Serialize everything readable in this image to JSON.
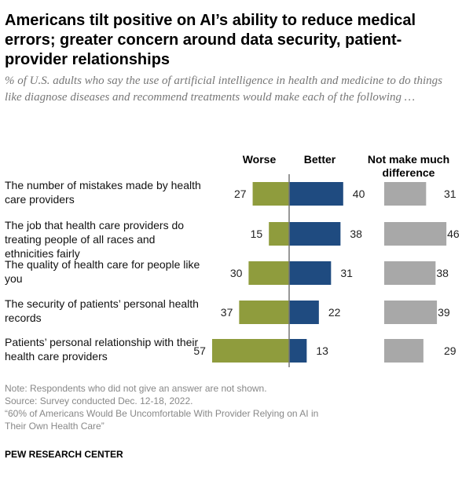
{
  "title": "Americans tilt positive on AI’s ability to reduce medical errors; greater concern around data security, patient-provider relationships",
  "subtitle": "% of U.S. adults who say the use of artificial intelligence in health and medicine to do things like diagnose diseases and recommend treatments would make each of the following …",
  "chart_data": {
    "type": "bar",
    "categories": [
      "The number of mistakes made by health care providers",
      "The job that health care providers do treating people of all races and ethnicities fairly",
      "The quality of health care for people like you",
      "The security of patients’ personal health records",
      "Patients’ personal relationship with their health care providers"
    ],
    "series": [
      {
        "name": "Worse",
        "values": [
          27,
          15,
          30,
          37,
          57
        ],
        "color": "#8f9c3d"
      },
      {
        "name": "Better",
        "values": [
          40,
          38,
          31,
          22,
          13
        ],
        "color": "#1f4b80"
      },
      {
        "name": "Not make much difference",
        "values": [
          31,
          46,
          38,
          39,
          29
        ],
        "color": "#a8a8a8"
      }
    ]
  },
  "notes": [
    "Note: Respondents who did not give an answer are not shown.",
    "Source: Survey conducted Dec. 12-18, 2022.",
    "“60% of Americans Would Be Uncomfortable With Provider Relying on AI in Their Own Health Care”"
  ],
  "brand": "PEW RESEARCH CENTER"
}
